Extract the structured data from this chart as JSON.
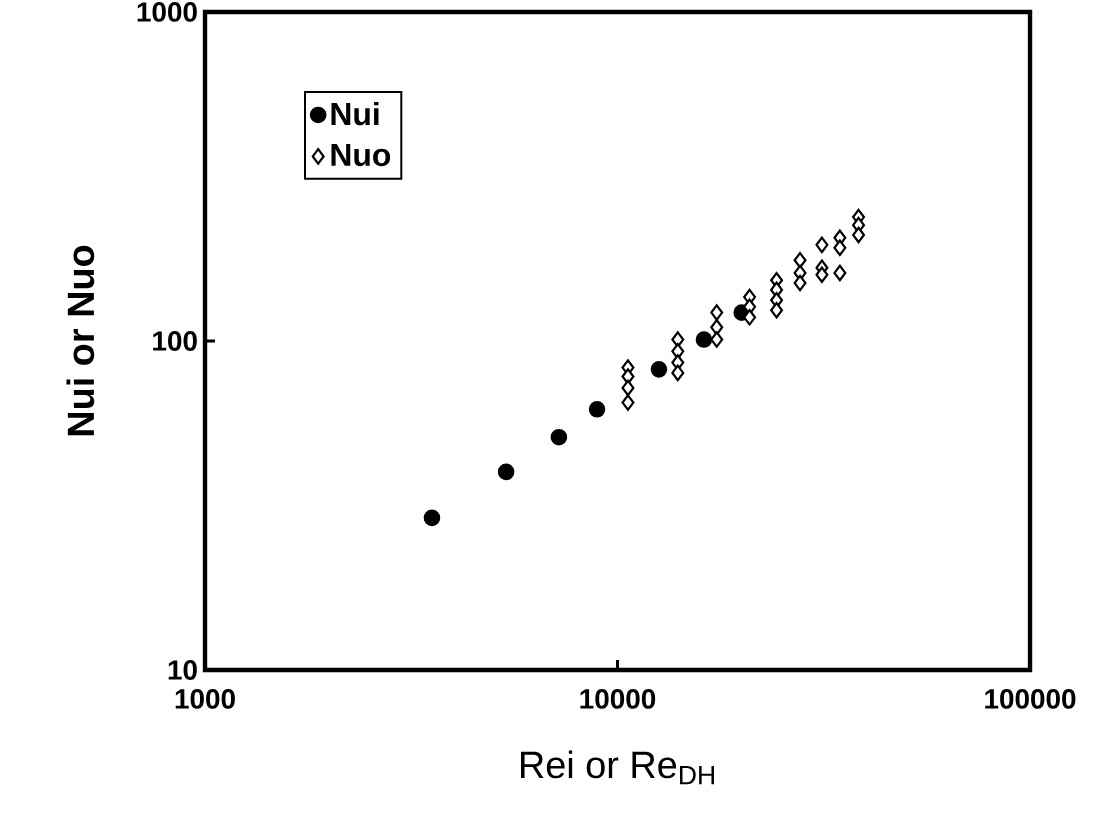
{
  "chart_data": {
    "type": "scatter",
    "xlabel": "Rei or Re$_{DH}$",
    "ylabel": "Nui or Nuo",
    "log": "xy",
    "xlim": [
      1000,
      100000
    ],
    "ylim": [
      10,
      1000
    ],
    "xticks": [
      1000,
      10000,
      100000
    ],
    "yticks": [
      10,
      100,
      1000
    ],
    "grid": false,
    "legend": "top left",
    "series": [
      {
        "name": "Nui",
        "color": "#000000",
        "marker": "circle",
        "x": [
          3550,
          5370,
          7210,
          8920,
          12600,
          16200,
          20000
        ],
        "values": [
          29,
          40,
          51,
          62,
          82,
          101,
          122
        ]
      },
      {
        "name": "Nuo",
        "color": "#ffffff",
        "marker": "diamond",
        "x": [
          10600,
          10600,
          10600,
          10600,
          14000,
          14000,
          14000,
          14000,
          17400,
          17400,
          17400,
          20900,
          20900,
          20900,
          24300,
          24300,
          24300,
          24300,
          27700,
          27700,
          27700,
          31300,
          31300,
          31300,
          34600,
          34600,
          34600,
          38400,
          38400,
          38400
        ],
        "values": [
          83,
          78,
          72,
          65,
          101,
          93,
          86,
          80,
          122,
          110,
          101,
          136,
          127,
          118,
          153,
          143,
          133,
          124,
          176,
          161,
          150,
          196,
          167,
          159,
          206,
          192,
          161,
          238,
          225,
          210
        ]
      }
    ]
  }
}
